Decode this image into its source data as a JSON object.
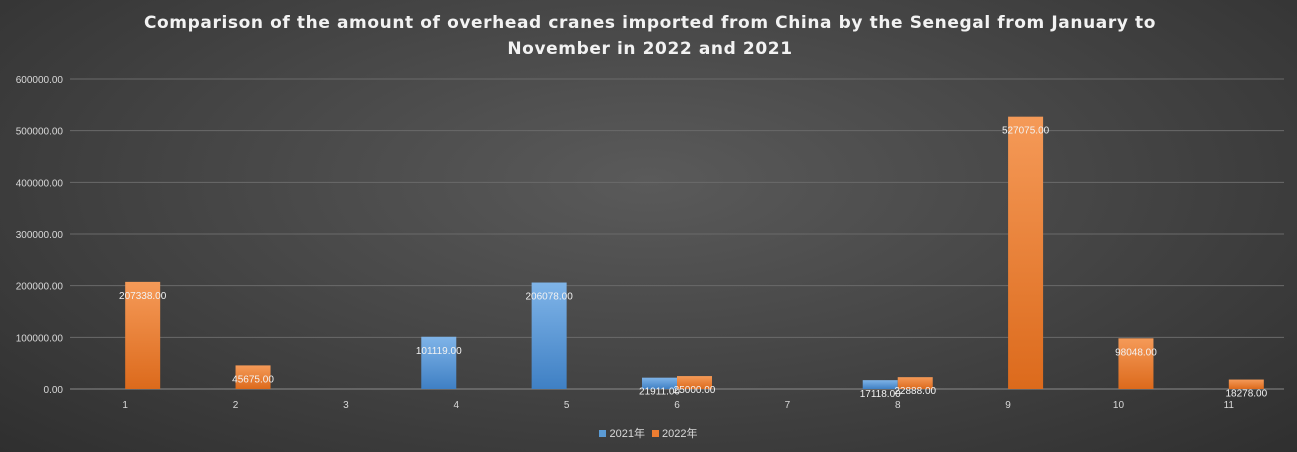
{
  "chart_data": {
    "type": "bar",
    "title": "Comparison of the amount of overhead cranes imported from China by the Senegal from January to November in 2022 and 2021",
    "categories": [
      "1",
      "2",
      "3",
      "4",
      "5",
      "6",
      "7",
      "8",
      "9",
      "10",
      "11"
    ],
    "series": [
      {
        "name": "2021年",
        "color": "#5b9bd5",
        "values": [
          0,
          0,
          0,
          101119.0,
          206078.0,
          21911.0,
          0,
          17118.0,
          0,
          0,
          0
        ],
        "labels": [
          "",
          "",
          "",
          "101119.00",
          "206078.00",
          "21911.00",
          "",
          "17118.00",
          "",
          "",
          ""
        ]
      },
      {
        "name": "2022年",
        "color": "#ed7d31",
        "values": [
          207338.0,
          45675.0,
          0,
          0,
          0,
          25000.0,
          0,
          22888.0,
          527075.0,
          98048.0,
          18278.0
        ],
        "labels": [
          "207338.00",
          "45675.00",
          "",
          "",
          "",
          "25000.00",
          "",
          "22888.00",
          "527075.00",
          "98048.00",
          "18278.00"
        ]
      }
    ],
    "yticks": [
      "0.00",
      "100000.00",
      "200000.00",
      "300000.00",
      "400000.00",
      "500000.00",
      "600000.00"
    ],
    "ylim": [
      0,
      600000
    ],
    "grid": true,
    "legend_position": "bottom"
  }
}
